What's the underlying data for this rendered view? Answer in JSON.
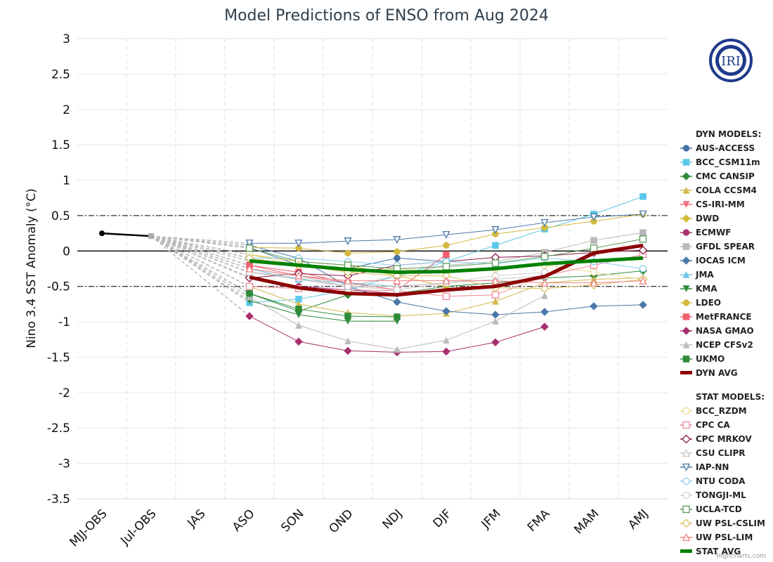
{
  "chart_data": {
    "type": "line",
    "title": "Model Predictions of ENSO from Aug 2024",
    "xlabel": "",
    "ylabel": "Nino 3.4 SST Anomaly (°C)",
    "ylim": [
      -3.5,
      3
    ],
    "yticks": [
      3,
      2.5,
      2,
      1.5,
      1,
      0.5,
      0,
      -0.5,
      -1,
      -1.5,
      -2,
      -2.5,
      -3,
      -3.5
    ],
    "categories": [
      "MJJ-OBS",
      "Jul-OBS",
      "JAS",
      "ASO",
      "SON",
      "OND",
      "NDJ",
      "DJF",
      "JFM",
      "FMA",
      "MAM",
      "AMJ"
    ],
    "grid": true,
    "legend_placement": "right",
    "reference_lines": [
      0.5,
      0,
      -0.5
    ],
    "observed": {
      "categories": [
        "MJJ-OBS",
        "Jul-OBS"
      ],
      "values": [
        0.25,
        0.21
      ],
      "color": "#000000"
    },
    "forecast_categories": [
      "ASO",
      "SON",
      "OND",
      "NDJ",
      "DJF",
      "JFM",
      "FMA",
      "MAM",
      "AMJ"
    ],
    "groups": [
      {
        "name": "DYN MODELS:",
        "series": [
          {
            "name": "AUS-ACCESS",
            "color": "#4572A7",
            "marker": "circle",
            "filled": true,
            "values": [
              0.05,
              -0.2,
              -0.25,
              -0.1,
              -0.15,
              null,
              null,
              null,
              null
            ]
          },
          {
            "name": "BCC_CSM11m",
            "color": "#5BC8E8",
            "marker": "square",
            "filled": true,
            "values": [
              -0.73,
              -0.68,
              -0.55,
              -0.35,
              -0.15,
              0.08,
              0.31,
              0.52,
              0.77
            ]
          },
          {
            "name": "CMC CANSIP",
            "color": "#2E8B3A",
            "marker": "diamond",
            "filled": true,
            "values": [
              -0.6,
              -0.85,
              -0.62,
              -0.6,
              -0.5,
              -0.45,
              -0.38,
              -0.35,
              -0.28
            ]
          },
          {
            "name": "COLA CCSM4",
            "color": "#D4B84A",
            "marker": "triangle",
            "filled": true,
            "values": [
              -0.5,
              -0.75,
              -0.87,
              -0.92,
              -0.88,
              -0.71,
              -0.45,
              -0.4,
              -0.38
            ]
          },
          {
            "name": "CS-IRI-MM",
            "color": "#F07080",
            "marker": "triangle-down",
            "filled": true,
            "values": [
              -0.2,
              -0.35,
              -0.45,
              -0.5,
              -0.45,
              null,
              null,
              null,
              null
            ]
          },
          {
            "name": "DWD",
            "color": "#D4B830",
            "marker": "diamond",
            "filled": true,
            "values": [
              -0.05,
              -0.15,
              -0.2,
              -0.35,
              -0.5,
              null,
              null,
              null,
              null
            ]
          },
          {
            "name": "ECMWF",
            "color": "#A83270",
            "marker": "circle",
            "filled": true,
            "values": [
              -0.38,
              -0.5,
              -0.55,
              -0.6,
              null,
              null,
              null,
              null,
              null
            ]
          },
          {
            "name": "GFDL SPEAR",
            "color": "#B8B8B8",
            "marker": "square",
            "filled": true,
            "values": [
              -0.3,
              -0.4,
              -0.5,
              -0.35,
              -0.2,
              -0.15,
              -0.02,
              0.15,
              0.26
            ]
          },
          {
            "name": "IOCAS ICM",
            "color": "#4A78A8",
            "marker": "diamond",
            "filled": true,
            "values": [
              0.08,
              -0.1,
              -0.5,
              -0.72,
              -0.85,
              -0.9,
              -0.86,
              -0.78,
              -0.76
            ]
          },
          {
            "name": "JMA",
            "color": "#6CC8E8",
            "marker": "triangle",
            "filled": true,
            "values": [
              -0.25,
              -0.4,
              -0.45,
              -0.5,
              null,
              null,
              null,
              null,
              null
            ]
          },
          {
            "name": "KMA",
            "color": "#2E8B3A",
            "marker": "triangle-down",
            "filled": true,
            "values": [
              -0.7,
              -0.9,
              -0.99,
              -0.99,
              null,
              null,
              null,
              null,
              null
            ]
          },
          {
            "name": "LDEO",
            "color": "#D4B840",
            "marker": "circle",
            "filled": true,
            "values": [
              0.05,
              0.04,
              -0.03,
              -0.01,
              0.08,
              0.24,
              0.33,
              0.42,
              0.52
            ]
          },
          {
            "name": "MetFRANCE",
            "color": "#F06070",
            "marker": "square",
            "filled": true,
            "values": [
              -0.2,
              -0.3,
              -0.45,
              -0.55,
              -0.05,
              null,
              null,
              null,
              null
            ]
          },
          {
            "name": "NASA GMAO",
            "color": "#A8306E",
            "marker": "diamond",
            "filled": true,
            "values": [
              -0.92,
              -1.28,
              -1.41,
              -1.43,
              -1.42,
              -1.29,
              -1.07,
              null,
              null
            ]
          },
          {
            "name": "NCEP CFSv2",
            "color": "#BBBBBB",
            "marker": "triangle",
            "filled": true,
            "values": [
              -0.65,
              -1.05,
              -1.27,
              -1.39,
              -1.26,
              -0.99,
              -0.63,
              null,
              null
            ]
          },
          {
            "name": "UKMO",
            "color": "#2E8B3A",
            "marker": "square",
            "filled": true,
            "values": [
              -0.6,
              -0.82,
              -0.92,
              -0.93,
              null,
              null,
              null,
              null,
              null
            ]
          },
          {
            "name": "DYN AVG",
            "color": "#8B0000",
            "marker": "none",
            "thick": true,
            "values": [
              -0.37,
              -0.52,
              -0.6,
              -0.62,
              -0.55,
              -0.5,
              -0.36,
              -0.03,
              0.08
            ]
          }
        ]
      },
      {
        "name": "STAT MODELS:",
        "series": [
          {
            "name": "BCC_RZDM",
            "color": "#E8D890",
            "marker": "circle",
            "filled": false,
            "values": [
              -0.05,
              -0.2,
              -0.3,
              -0.25,
              -0.3,
              -0.25,
              -0.2,
              -0.3,
              -0.4
            ]
          },
          {
            "name": "CPC CA",
            "color": "#F08898",
            "marker": "square",
            "filled": false,
            "values": [
              -0.5,
              -0.53,
              -0.55,
              -0.56,
              -0.64,
              -0.62,
              -0.35,
              -0.2,
              -0.05
            ]
          },
          {
            "name": "CPC MRKOV",
            "color": "#8B1A4A",
            "marker": "diamond",
            "filled": false,
            "values": [
              -0.38,
              -0.32,
              -0.35,
              -0.2,
              -0.15,
              -0.09,
              -0.07,
              -0.02,
              0.01
            ]
          },
          {
            "name": "CSU CLIPR",
            "color": "#C8C8C8",
            "marker": "triangle",
            "filled": false,
            "values": [
              -0.3,
              -0.35,
              -0.5,
              -0.5,
              -0.45,
              -0.4,
              -0.35,
              null,
              null
            ]
          },
          {
            "name": "IAP-NN",
            "color": "#4A78A8",
            "marker": "triangle-down",
            "filled": false,
            "values": [
              0.11,
              0.11,
              0.14,
              0.16,
              0.23,
              0.3,
              0.4,
              0.48,
              0.52
            ]
          },
          {
            "name": "NTU CODA",
            "color": "#88D0F0",
            "marker": "circle",
            "filled": false,
            "values": [
              -0.1,
              -0.1,
              -0.15,
              -0.2,
              -0.15,
              -0.18,
              -0.1,
              -0.15,
              -0.25
            ]
          },
          {
            "name": "TONGJI-ML",
            "color": "#D0D0D0",
            "marker": "circle",
            "filled": false,
            "values": [
              -0.3,
              -0.38,
              -0.5,
              -0.55,
              -0.45,
              -0.35,
              -0.3,
              null,
              null
            ]
          },
          {
            "name": "UCLA-TCD",
            "color": "#5A9A5A",
            "marker": "square",
            "filled": false,
            "values": [
              0.04,
              -0.15,
              -0.2,
              -0.25,
              -0.22,
              -0.17,
              -0.08,
              0.04,
              0.17
            ]
          },
          {
            "name": "UW PSL-CSLIM",
            "color": "#D8C060",
            "marker": "diamond",
            "filled": false,
            "values": [
              -0.1,
              -0.2,
              -0.3,
              -0.35,
              -0.35,
              -0.52,
              -0.53,
              -0.48,
              -0.4
            ]
          },
          {
            "name": "UW PSL-LIM",
            "color": "#F08080",
            "marker": "triangle",
            "filled": false,
            "values": [
              -0.25,
              -0.35,
              -0.42,
              -0.42,
              -0.42,
              -0.42,
              -0.45,
              -0.45,
              -0.42
            ]
          },
          {
            "name": "STAT AVG",
            "color": "#008000",
            "marker": "none",
            "thick": true,
            "values": [
              -0.14,
              -0.2,
              -0.26,
              -0.3,
              -0.29,
              -0.25,
              -0.18,
              -0.14,
              -0.1
            ]
          }
        ]
      }
    ]
  },
  "logo": {
    "text": "IRI",
    "color": "#1F3A8A"
  },
  "credit": "Highcharts.com"
}
